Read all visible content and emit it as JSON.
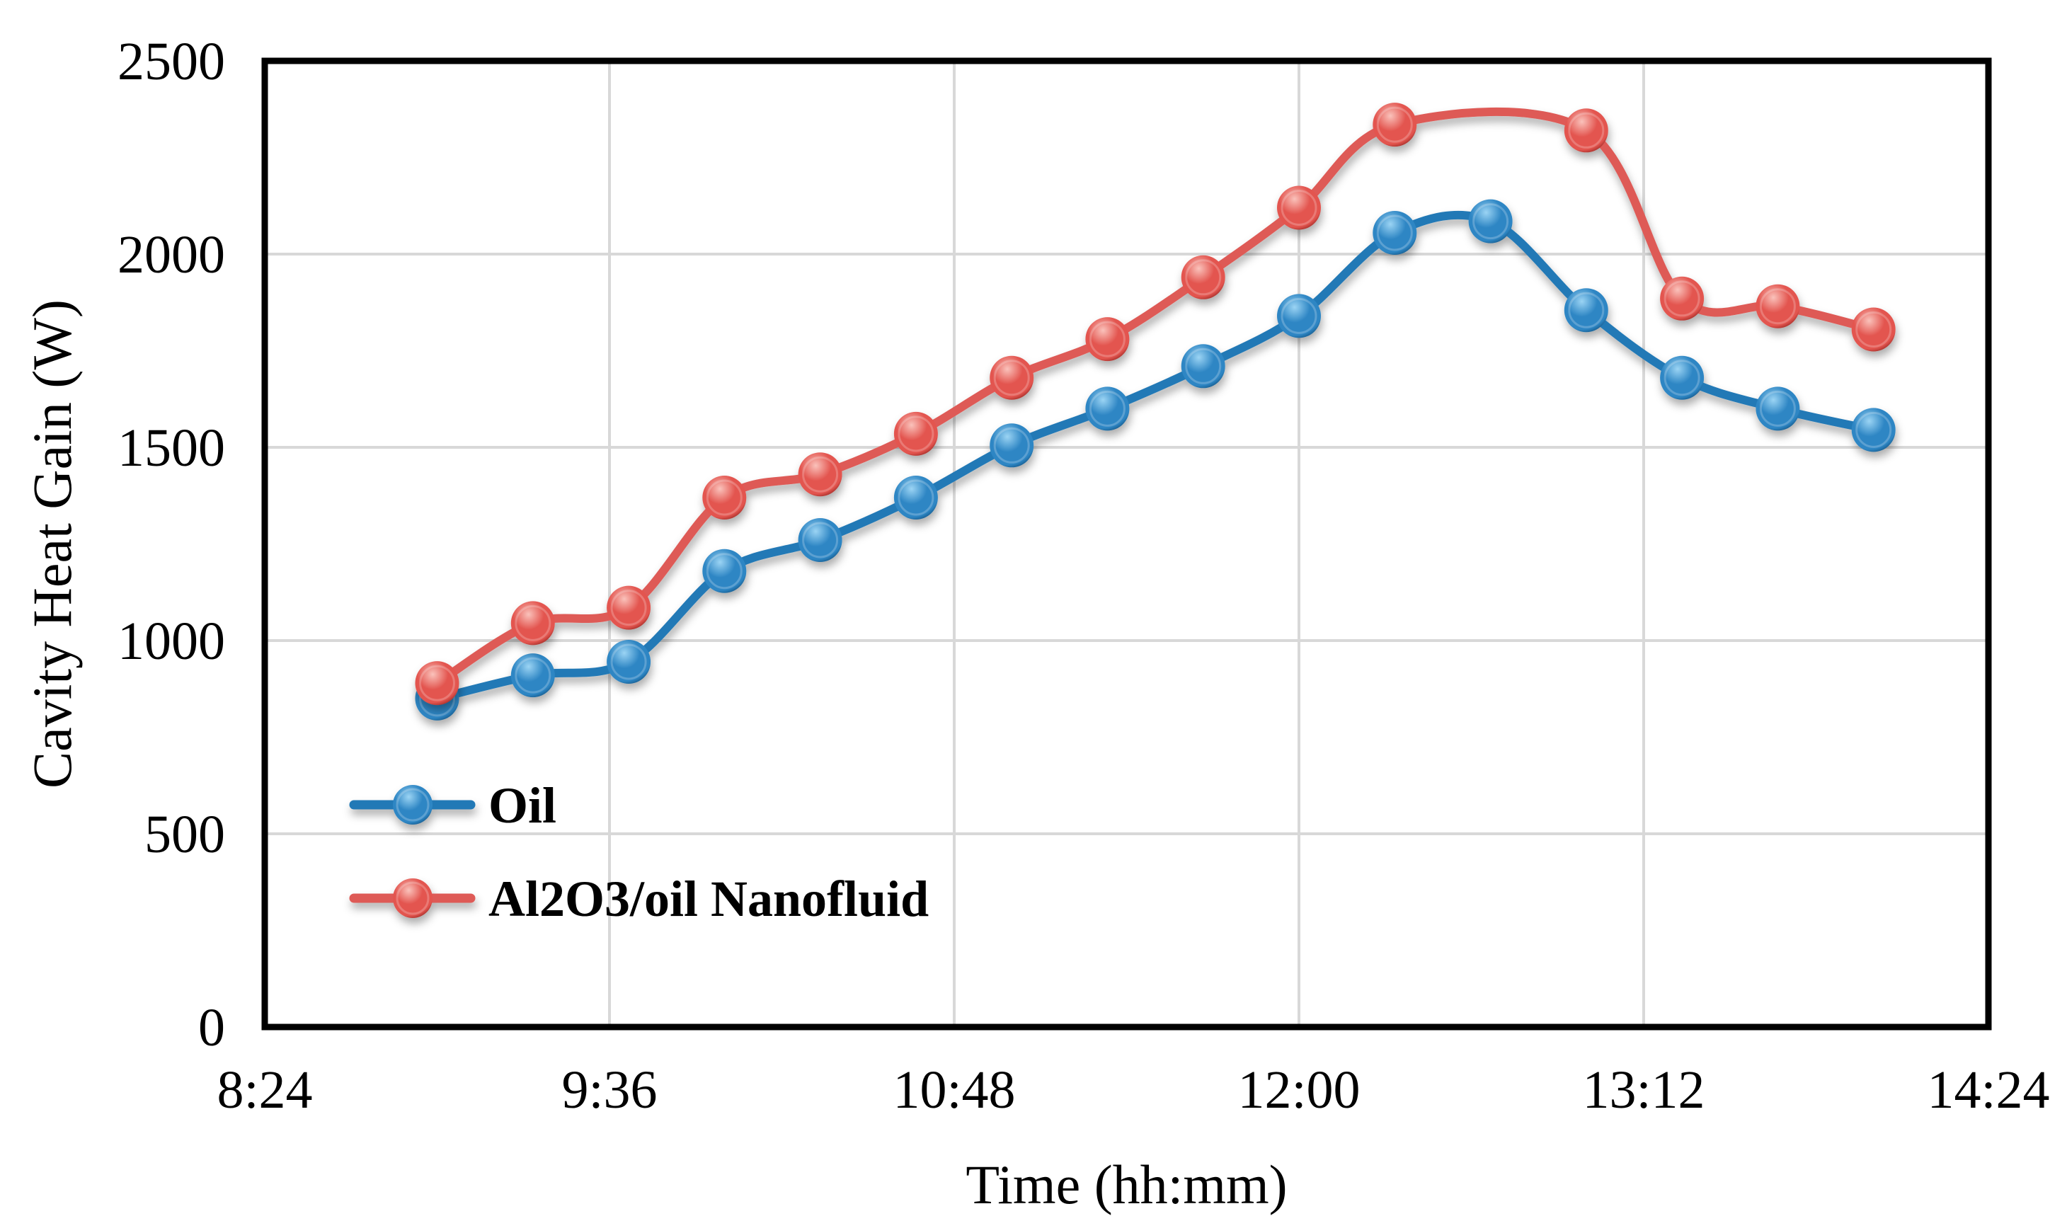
{
  "figure": {
    "background": "#FFFFFF"
  },
  "chart_data": {
    "type": "line",
    "title": "",
    "xlabel": "Time (hh:mm)",
    "ylabel": "Cavity Heat Gain (W)",
    "x_axis": {
      "min": "8:24",
      "max": "14:24",
      "tick_labels": [
        "8:24",
        "9:36",
        "10:48",
        "12:00",
        "13:12",
        "14:24"
      ]
    },
    "y_axis": {
      "min": 0,
      "max": 2500,
      "tick_labels": [
        "0",
        "500",
        "1000",
        "1500",
        "2000",
        "2500"
      ]
    },
    "grid": true,
    "grid_color": "#D8D8D8",
    "axis_color": "#000000",
    "legend_position": "inside-left-middle, no border",
    "line_style": "smoothed",
    "marker_style": "3d-sphere",
    "series": [
      {
        "name": "Oil",
        "color": "#2279B6",
        "marker_gradient": [
          "#9BD4F4",
          "#2E86C4",
          "#0F4C7A"
        ],
        "points": [
          [
            "9:00",
            850
          ],
          [
            "9:20",
            910
          ],
          [
            "9:40",
            945
          ],
          [
            "10:00",
            1180
          ],
          [
            "10:20",
            1260
          ],
          [
            "10:40",
            1370
          ],
          [
            "11:00",
            1505
          ],
          [
            "11:20",
            1600
          ],
          [
            "11:40",
            1710
          ],
          [
            "12:00",
            1840
          ],
          [
            "12:20",
            2055
          ],
          [
            "12:40",
            2085
          ],
          [
            "13:00",
            1855
          ],
          [
            "13:20",
            1680
          ],
          [
            "13:40",
            1600
          ],
          [
            "14:00",
            1545
          ]
        ]
      },
      {
        "name": "Al2O3/oil Nanofluid",
        "color": "#DE5A56",
        "marker_gradient": [
          "#FAC2BB",
          "#E3554F",
          "#8C201C"
        ],
        "points": [
          [
            "9:00",
            890
          ],
          [
            "9:20",
            1045
          ],
          [
            "9:40",
            1085
          ],
          [
            "10:00",
            1370
          ],
          [
            "10:20",
            1430
          ],
          [
            "10:40",
            1535
          ],
          [
            "11:00",
            1680
          ],
          [
            "11:20",
            1780
          ],
          [
            "11:40",
            1940
          ],
          [
            "12:00",
            2120
          ],
          [
            "12:20",
            2335
          ],
          [
            "13:00",
            2320
          ],
          [
            "13:20",
            1885
          ],
          [
            "13:40",
            1865
          ],
          [
            "14:00",
            1805
          ]
        ]
      }
    ]
  }
}
